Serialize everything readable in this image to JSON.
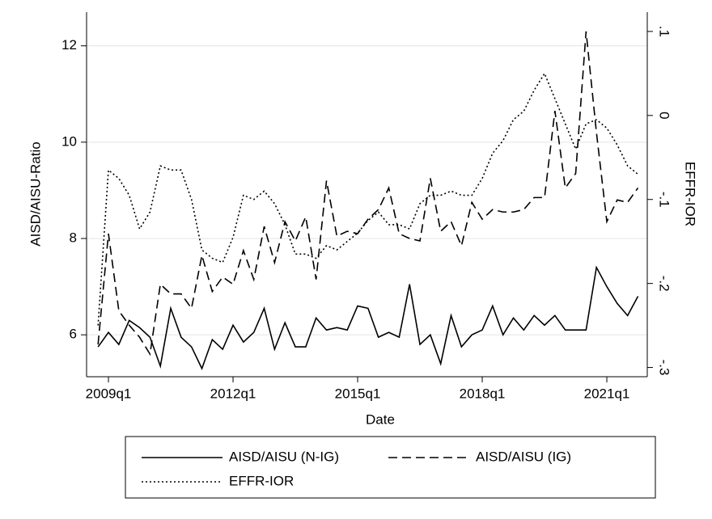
{
  "chart_data": {
    "type": "line",
    "xlabel": "Date",
    "ylabel": "AISD/AISU-Ratio",
    "y2label": "EFFR-IOR",
    "categories": [
      null,
      "2009q1",
      null,
      null,
      null,
      null,
      null,
      null,
      null,
      null,
      null,
      null,
      null,
      "2012q1",
      null,
      null,
      null,
      null,
      null,
      null,
      null,
      null,
      null,
      null,
      null,
      "2015q1",
      null,
      null,
      null,
      null,
      null,
      null,
      null,
      null,
      null,
      null,
      null,
      "2018q1",
      null,
      null,
      null,
      null,
      null,
      null,
      null,
      null,
      null,
      null,
      null,
      "2021q1",
      null,
      null,
      null
    ],
    "series": [
      {
        "name": "AISD/AISU (N-IG)",
        "color": "#000000",
        "style": "solid",
        "axis": "y",
        "values": [
          5.75,
          6.05,
          5.8,
          6.3,
          6.15,
          5.95,
          5.35,
          6.55,
          5.95,
          5.75,
          5.3,
          5.9,
          5.7,
          6.2,
          5.85,
          6.05,
          6.55,
          5.7,
          6.25,
          5.75,
          5.75,
          6.35,
          6.1,
          6.15,
          6.1,
          6.6,
          6.55,
          5.95,
          6.05,
          5.95,
          7.05,
          5.8,
          6.0,
          5.4,
          6.4,
          5.75,
          6.0,
          6.1,
          6.6,
          6.0,
          6.35,
          6.1,
          6.4,
          6.2,
          6.4,
          6.1,
          6.1,
          6.1,
          7.4,
          7.0,
          6.65,
          6.4,
          6.8
        ]
      },
      {
        "name": "AISD/AISU (IG)",
        "color": "#000000",
        "style": "dash",
        "axis": "y",
        "values": [
          5.8,
          8.1,
          6.5,
          6.2,
          5.95,
          5.6,
          7.05,
          6.85,
          6.85,
          6.55,
          7.65,
          6.9,
          7.2,
          7.05,
          7.75,
          7.15,
          8.25,
          7.5,
          8.35,
          7.95,
          8.45,
          7.15,
          9.2,
          8.05,
          8.15,
          8.1,
          8.4,
          8.6,
          9.05,
          8.1,
          8.0,
          7.95,
          9.25,
          8.15,
          8.35,
          7.85,
          8.75,
          8.4,
          8.6,
          8.55,
          8.55,
          8.6,
          8.85,
          8.85,
          10.65,
          9.05,
          9.35,
          12.3,
          10.2,
          8.35,
          8.8,
          8.75,
          9.05
        ]
      },
      {
        "name": "EFFR-IOR",
        "color": "#000000",
        "style": "dot",
        "axis": "y2",
        "values": [
          -0.25,
          -0.065,
          -0.075,
          -0.095,
          -0.135,
          -0.115,
          -0.06,
          -0.065,
          -0.065,
          -0.1,
          -0.16,
          -0.17,
          -0.175,
          -0.145,
          -0.095,
          -0.1,
          -0.09,
          -0.105,
          -0.13,
          -0.165,
          -0.165,
          -0.17,
          -0.155,
          -0.16,
          -0.15,
          -0.14,
          -0.125,
          -0.115,
          -0.13,
          -0.13,
          -0.135,
          -0.105,
          -0.095,
          -0.095,
          -0.09,
          -0.095,
          -0.095,
          -0.075,
          -0.045,
          -0.03,
          -0.005,
          0.005,
          0.03,
          0.05,
          0.02,
          -0.01,
          -0.04,
          -0.01,
          -0.005,
          -0.015,
          -0.035,
          -0.06,
          -0.07
        ]
      }
    ],
    "ylim": [
      5.13,
      12.7
    ],
    "yticks": [
      6,
      8,
      10,
      12
    ],
    "y2lim": [
      -0.311,
      0.123
    ],
    "y2ticks": [
      {
        "value": 0.1,
        "label": ".1"
      },
      0,
      {
        "value": -0.1,
        "label": "-.1"
      },
      {
        "value": -0.2,
        "label": "-.2"
      },
      {
        "value": -0.3,
        "label": "-.3"
      }
    ],
    "grid": true
  }
}
